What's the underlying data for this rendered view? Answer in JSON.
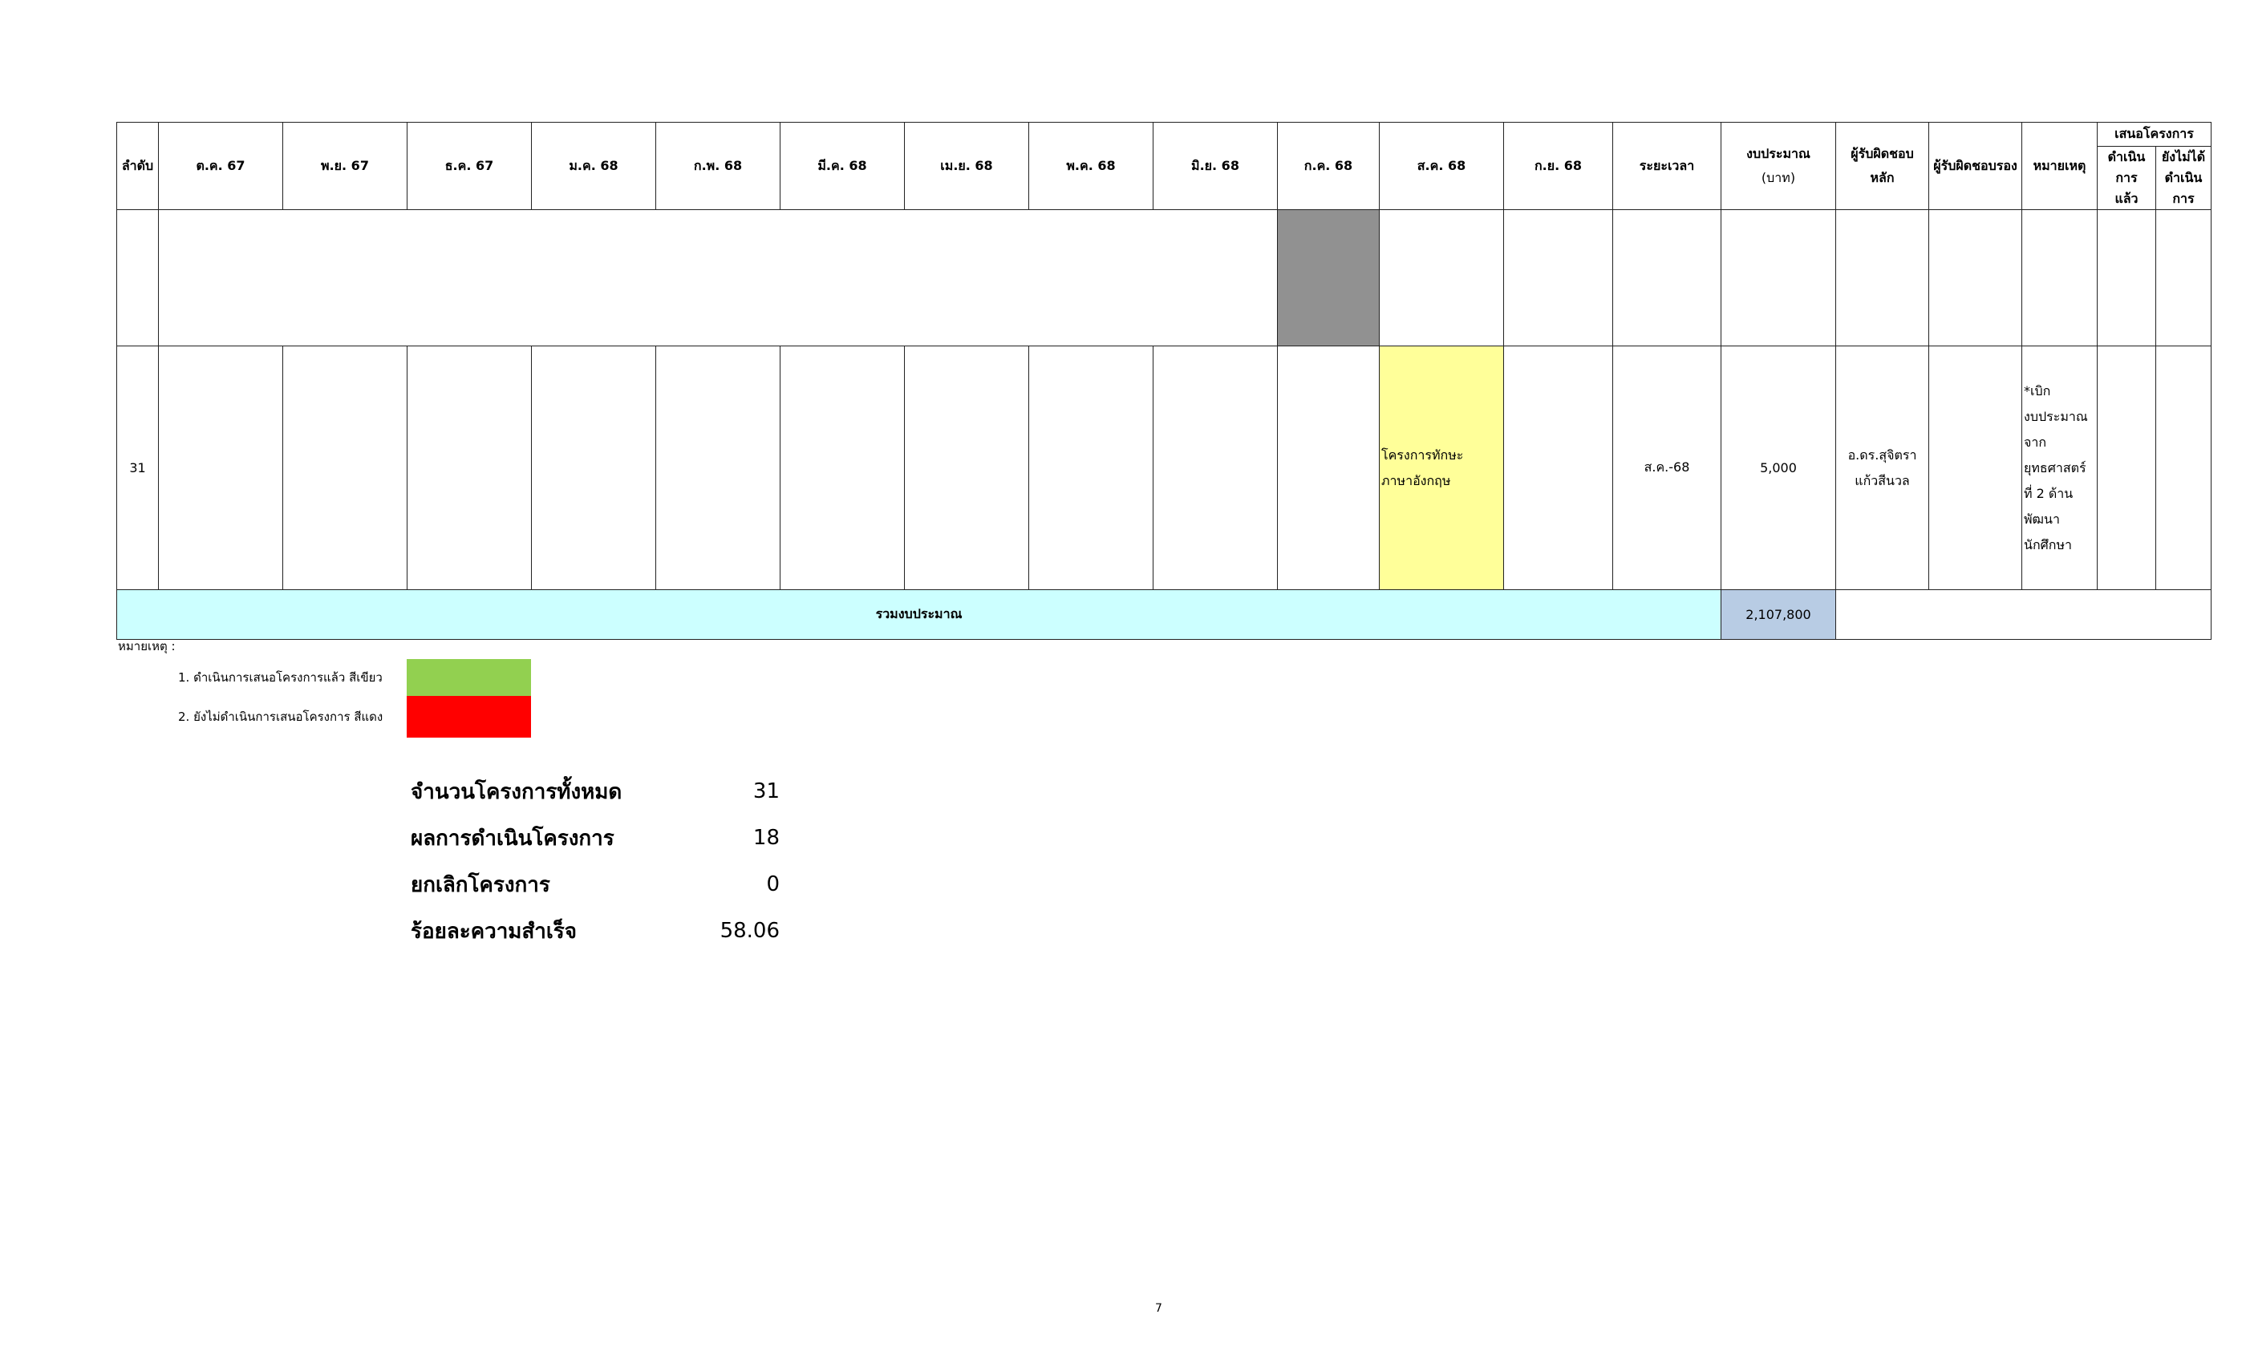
{
  "header": {
    "seq": "ลำดับ",
    "months": [
      "ต.ค. 67",
      "พ.ย. 67",
      "ธ.ค. 67",
      "ม.ค. 68",
      "ก.พ. 68",
      "มี.ค. 68",
      "เม.ย. 68",
      "พ.ค. 68",
      "มิ.ย. 68",
      "ก.ค. 68",
      "ส.ค. 68",
      "ก.ย. 68"
    ],
    "duration": "ระยะเวลา",
    "budget_line1": "งบประมาณ",
    "budget_line2": "(บาท)",
    "main_resp_line1": "ผู้รับผิดชอบ",
    "main_resp_line2": "หลัก",
    "secondary_resp": "ผู้รับผิดชอบรอง",
    "remark": "หมายเหตุ",
    "proposal_group": "เสนอโครงการ",
    "proposal_done_line1": "ดำเนินการ",
    "proposal_done_line2": "แล้ว",
    "proposal_notdone_line1": "ยังไม่ได้",
    "proposal_notdone_line2": "ดำเนินการ"
  },
  "row31": {
    "seq": "31",
    "project_line1": "โครงการทักษะ",
    "project_line2": "ภาษาอังกฤษ",
    "duration": "ส.ค.-68",
    "budget": "5,000",
    "main_resp_line1": "อ.ดร.สุจิตรา",
    "main_resp_line2": "แก้วสีนวล",
    "remark_lines": [
      "*เบิก",
      "งบประมาณ",
      "จาก",
      "ยุทธศาสตร์",
      "ที่ 2 ด้าน",
      "พัฒนา",
      "นักศึกษา"
    ]
  },
  "total": {
    "label": "รวมงบประมาณ",
    "value": "2,107,800"
  },
  "legend": {
    "title": "หมายเหตุ :",
    "item1": "1. ดำเนินการเสนอโครงการแล้ว สีเขียว",
    "item2": "2. ยังไม่ดำเนินการเสนอโครงการ สีแดง",
    "color1": "#92d050",
    "color2": "#ff0000"
  },
  "summary": {
    "total_projects_label": "จำนวนโครงการทั้งหมด",
    "total_projects_value": "31",
    "results_label": "ผลการดำเนินโครงการ",
    "results_value": "18",
    "cancelled_label": "ยกเลิกโครงการ",
    "cancelled_value": "0",
    "success_label": "ร้อยละความสำเร็จ",
    "success_value": "58.06"
  },
  "page_number": "7"
}
